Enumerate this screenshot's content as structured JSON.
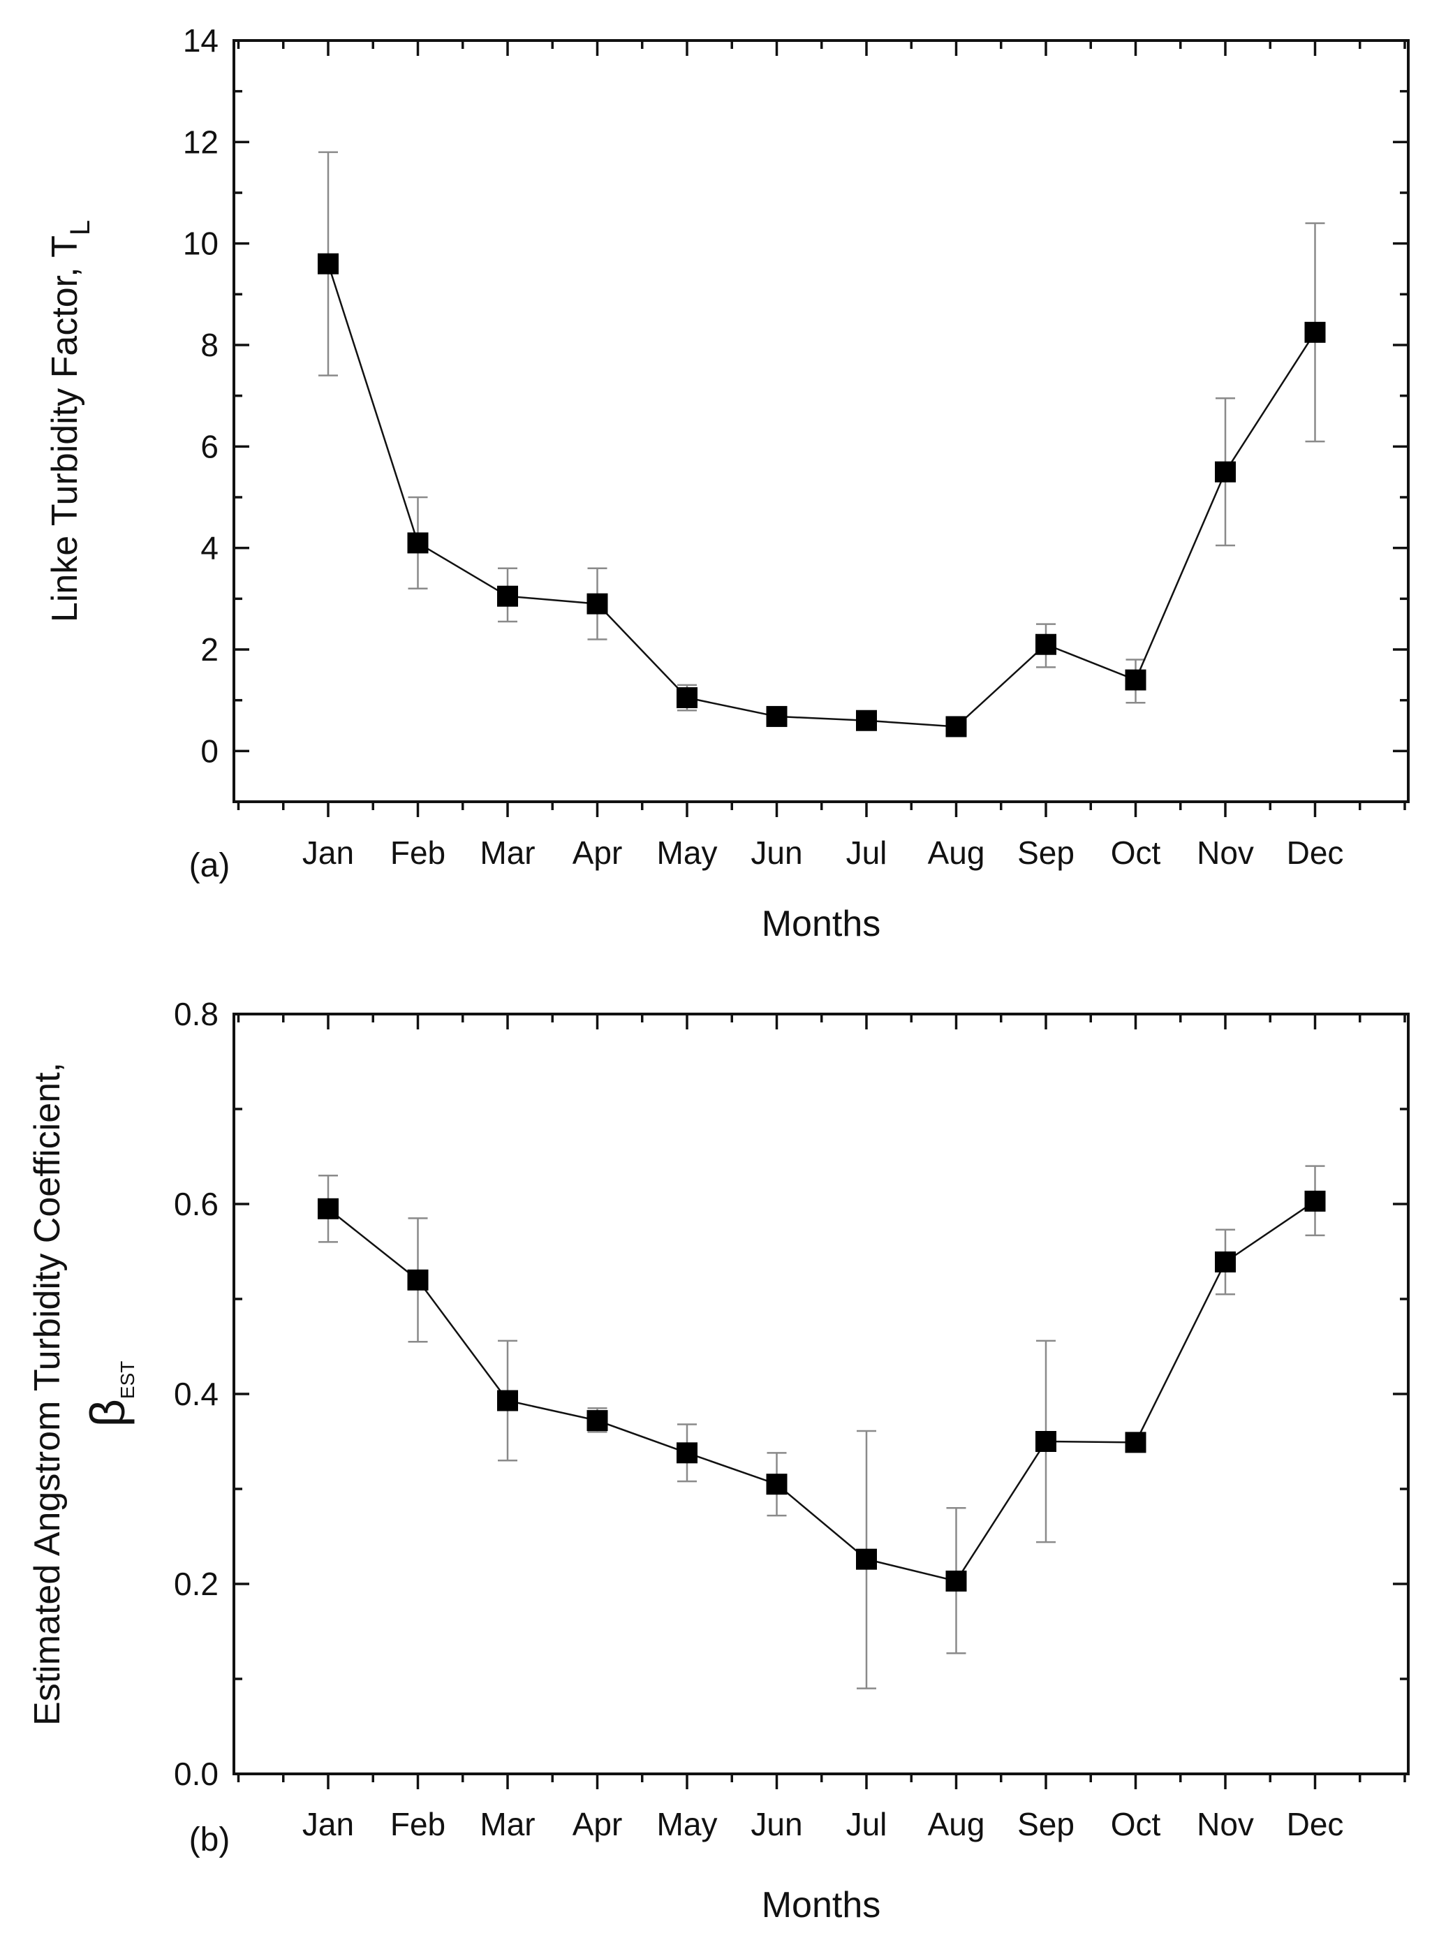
{
  "chart_data": [
    {
      "type": "line",
      "panel_label": "(a)",
      "title": "",
      "xlabel": "Months",
      "ylabel": "Linke Turbidity Factor, T",
      "ylabel_subscript": "L",
      "categories": [
        "Jan",
        "Feb",
        "Mar",
        "Apr",
        "May",
        "Jun",
        "Jul",
        "Aug",
        "Sep",
        "Oct",
        "Nov",
        "Dec"
      ],
      "values": [
        9.6,
        4.1,
        3.05,
        2.9,
        1.05,
        0.68,
        0.6,
        0.48,
        2.1,
        1.4,
        5.5,
        8.25
      ],
      "error_low": [
        7.4,
        3.2,
        2.55,
        2.2,
        0.8,
        0.68,
        0.6,
        0.48,
        1.65,
        0.95,
        4.05,
        6.1
      ],
      "error_high": [
        11.8,
        5.0,
        3.6,
        3.6,
        1.3,
        0.68,
        0.6,
        0.48,
        2.5,
        1.8,
        6.95,
        10.4
      ],
      "ylim": [
        -1,
        14
      ],
      "yticks": [
        0,
        2,
        4,
        6,
        8,
        10,
        12,
        14
      ],
      "ytick_labels": [
        "0",
        "2",
        "4",
        "6",
        "8",
        "10",
        "12",
        "14"
      ],
      "grid": false,
      "legend": "none"
    },
    {
      "type": "line",
      "panel_label": "(b)",
      "title": "",
      "xlabel": "Months",
      "ylabel": "Estimated Angstrom Turbidity Coefficient,",
      "ylabel_line2": "β",
      "ylabel_subscript": "EST",
      "categories": [
        "Jan",
        "Feb",
        "Mar",
        "Apr",
        "May",
        "Jun",
        "Jul",
        "Aug",
        "Sep",
        "Oct",
        "Nov",
        "Dec"
      ],
      "values": [
        0.595,
        0.52,
        0.393,
        0.372,
        0.338,
        0.305,
        0.226,
        0.203,
        0.35,
        0.349,
        0.539,
        0.603
      ],
      "error_low": [
        0.56,
        0.455,
        0.33,
        0.36,
        0.308,
        0.272,
        0.09,
        0.127,
        0.244,
        0.349,
        0.505,
        0.567
      ],
      "error_high": [
        0.63,
        0.585,
        0.456,
        0.385,
        0.368,
        0.338,
        0.361,
        0.28,
        0.456,
        0.349,
        0.573,
        0.64
      ],
      "ylim": [
        0.0,
        0.8
      ],
      "yticks": [
        0.0,
        0.2,
        0.4,
        0.6,
        0.8
      ],
      "ytick_labels": [
        "0.0",
        "0.2",
        "0.4",
        "0.6",
        "0.8"
      ],
      "grid": false,
      "legend": "none"
    }
  ]
}
